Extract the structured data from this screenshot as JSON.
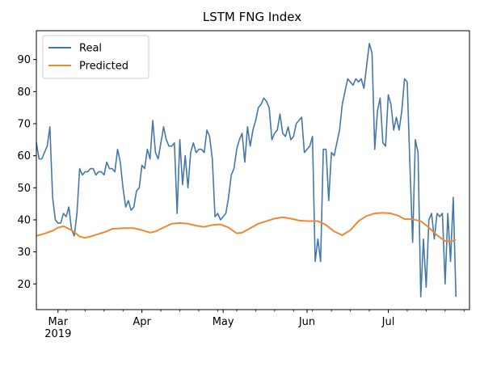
{
  "chart_data": {
    "type": "line",
    "title": "LSTM FNG Index",
    "xlabel": "",
    "ylabel": "",
    "x_range": [
      "2019-02-21",
      "2019-07-31"
    ],
    "ylim": [
      12,
      99
    ],
    "y_ticks": [
      20,
      30,
      40,
      50,
      60,
      70,
      80,
      90
    ],
    "x_ticks": [
      {
        "date": "2019-03-01",
        "label": "Mar",
        "sublabel": "2019"
      },
      {
        "date": "2019-04-01",
        "label": "Apr",
        "sublabel": ""
      },
      {
        "date": "2019-05-01",
        "label": "May",
        "sublabel": ""
      },
      {
        "date": "2019-06-01",
        "label": "Jun",
        "sublabel": ""
      },
      {
        "date": "2019-07-01",
        "label": "Jul",
        "sublabel": ""
      }
    ],
    "grid": false,
    "legend": {
      "position": "top-left"
    },
    "series": [
      {
        "name": "Real",
        "color": "#4477aa",
        "points": [
          [
            "2019-02-21",
            64
          ],
          [
            "2019-02-22",
            59
          ],
          [
            "2019-02-23",
            59
          ],
          [
            "2019-02-24",
            61
          ],
          [
            "2019-02-25",
            63
          ],
          [
            "2019-02-26",
            69
          ],
          [
            "2019-02-27",
            47
          ],
          [
            "2019-02-28",
            40
          ],
          [
            "2019-03-01",
            39
          ],
          [
            "2019-03-02",
            39
          ],
          [
            "2019-03-03",
            42
          ],
          [
            "2019-03-04",
            41
          ],
          [
            "2019-03-05",
            44
          ],
          [
            "2019-03-06",
            37
          ],
          [
            "2019-03-07",
            35
          ],
          [
            "2019-03-08",
            42
          ],
          [
            "2019-03-09",
            56
          ],
          [
            "2019-03-10",
            54
          ],
          [
            "2019-03-11",
            55
          ],
          [
            "2019-03-12",
            55
          ],
          [
            "2019-03-13",
            56
          ],
          [
            "2019-03-14",
            56
          ],
          [
            "2019-03-15",
            54
          ],
          [
            "2019-03-16",
            55
          ],
          [
            "2019-03-17",
            55
          ],
          [
            "2019-03-18",
            54
          ],
          [
            "2019-03-19",
            58
          ],
          [
            "2019-03-20",
            56
          ],
          [
            "2019-03-21",
            56
          ],
          [
            "2019-03-22",
            55
          ],
          [
            "2019-03-23",
            62
          ],
          [
            "2019-03-24",
            58
          ],
          [
            "2019-03-25",
            50
          ],
          [
            "2019-03-26",
            44
          ],
          [
            "2019-03-27",
            46
          ],
          [
            "2019-03-28",
            43
          ],
          [
            "2019-03-29",
            44
          ],
          [
            "2019-03-30",
            49
          ],
          [
            "2019-03-31",
            50
          ],
          [
            "2019-04-01",
            57
          ],
          [
            "2019-04-02",
            56
          ],
          [
            "2019-04-03",
            62
          ],
          [
            "2019-04-04",
            59
          ],
          [
            "2019-04-05",
            71
          ],
          [
            "2019-04-06",
            61
          ],
          [
            "2019-04-07",
            59
          ],
          [
            "2019-04-08",
            64
          ],
          [
            "2019-04-09",
            69
          ],
          [
            "2019-04-10",
            65
          ],
          [
            "2019-04-11",
            63
          ],
          [
            "2019-04-12",
            63
          ],
          [
            "2019-04-13",
            64
          ],
          [
            "2019-04-14",
            42
          ],
          [
            "2019-04-15",
            65
          ],
          [
            "2019-04-16",
            51
          ],
          [
            "2019-04-17",
            60
          ],
          [
            "2019-04-18",
            50
          ],
          [
            "2019-04-19",
            61
          ],
          [
            "2019-04-20",
            64
          ],
          [
            "2019-04-21",
            61
          ],
          [
            "2019-04-22",
            62
          ],
          [
            "2019-04-23",
            62
          ],
          [
            "2019-04-24",
            61
          ],
          [
            "2019-04-25",
            68
          ],
          [
            "2019-04-26",
            66
          ],
          [
            "2019-04-27",
            59
          ],
          [
            "2019-04-28",
            41
          ],
          [
            "2019-04-29",
            42
          ],
          [
            "2019-04-30",
            40
          ],
          [
            "2019-05-01",
            41
          ],
          [
            "2019-05-02",
            42
          ],
          [
            "2019-05-03",
            47
          ],
          [
            "2019-05-04",
            54
          ],
          [
            "2019-05-05",
            56
          ],
          [
            "2019-05-06",
            62
          ],
          [
            "2019-05-07",
            65
          ],
          [
            "2019-05-08",
            67
          ],
          [
            "2019-05-09",
            58
          ],
          [
            "2019-05-10",
            69
          ],
          [
            "2019-05-11",
            63
          ],
          [
            "2019-05-12",
            68
          ],
          [
            "2019-05-13",
            71
          ],
          [
            "2019-05-14",
            75
          ],
          [
            "2019-05-15",
            76
          ],
          [
            "2019-05-16",
            78
          ],
          [
            "2019-05-17",
            77
          ],
          [
            "2019-05-18",
            75
          ],
          [
            "2019-05-19",
            65
          ],
          [
            "2019-05-20",
            67
          ],
          [
            "2019-05-21",
            68
          ],
          [
            "2019-05-22",
            73
          ],
          [
            "2019-05-23",
            67
          ],
          [
            "2019-05-24",
            66
          ],
          [
            "2019-05-25",
            69
          ],
          [
            "2019-05-26",
            65
          ],
          [
            "2019-05-27",
            66
          ],
          [
            "2019-05-28",
            70
          ],
          [
            "2019-05-29",
            71
          ],
          [
            "2019-05-30",
            72
          ],
          [
            "2019-05-31",
            61
          ],
          [
            "2019-06-01",
            62
          ],
          [
            "2019-06-02",
            63
          ],
          [
            "2019-06-03",
            66
          ],
          [
            "2019-06-04",
            27
          ],
          [
            "2019-06-05",
            34
          ],
          [
            "2019-06-06",
            27
          ],
          [
            "2019-06-07",
            62
          ],
          [
            "2019-06-08",
            62
          ],
          [
            "2019-06-09",
            46
          ],
          [
            "2019-06-10",
            61
          ],
          [
            "2019-06-11",
            60
          ],
          [
            "2019-06-12",
            64
          ],
          [
            "2019-06-13",
            68
          ],
          [
            "2019-06-14",
            76
          ],
          [
            "2019-06-15",
            80
          ],
          [
            "2019-06-16",
            84
          ],
          [
            "2019-06-17",
            83
          ],
          [
            "2019-06-18",
            82
          ],
          [
            "2019-06-19",
            84
          ],
          [
            "2019-06-20",
            83
          ],
          [
            "2019-06-21",
            84
          ],
          [
            "2019-06-22",
            81
          ],
          [
            "2019-06-23",
            88
          ],
          [
            "2019-06-24",
            95
          ],
          [
            "2019-06-25",
            92
          ],
          [
            "2019-06-26",
            62
          ],
          [
            "2019-06-27",
            74
          ],
          [
            "2019-06-28",
            78
          ],
          [
            "2019-06-29",
            64
          ],
          [
            "2019-06-30",
            63
          ],
          [
            "2019-07-01",
            79
          ],
          [
            "2019-07-02",
            76
          ],
          [
            "2019-07-03",
            68
          ],
          [
            "2019-07-04",
            72
          ],
          [
            "2019-07-05",
            68
          ],
          [
            "2019-07-06",
            74
          ],
          [
            "2019-07-07",
            84
          ],
          [
            "2019-07-08",
            83
          ],
          [
            "2019-07-09",
            57
          ],
          [
            "2019-07-10",
            33
          ],
          [
            "2019-07-11",
            65
          ],
          [
            "2019-07-12",
            61
          ],
          [
            "2019-07-13",
            16
          ],
          [
            "2019-07-14",
            34
          ],
          [
            "2019-07-15",
            19
          ],
          [
            "2019-07-16",
            40
          ],
          [
            "2019-07-17",
            42
          ],
          [
            "2019-07-18",
            34
          ],
          [
            "2019-07-19",
            42
          ],
          [
            "2019-07-20",
            41
          ],
          [
            "2019-07-21",
            42
          ],
          [
            "2019-07-22",
            20
          ],
          [
            "2019-07-23",
            42
          ],
          [
            "2019-07-24",
            27
          ],
          [
            "2019-07-25",
            47
          ],
          [
            "2019-07-26",
            16
          ]
        ]
      },
      {
        "name": "Predicted",
        "color": "#ee8833",
        "points": [
          [
            "2019-02-21",
            35.0
          ],
          [
            "2019-02-24",
            35.7
          ],
          [
            "2019-02-27",
            36.6
          ],
          [
            "2019-03-01",
            37.6
          ],
          [
            "2019-03-03",
            38.0
          ],
          [
            "2019-03-05",
            37.2
          ],
          [
            "2019-03-07",
            36.2
          ],
          [
            "2019-03-09",
            34.8
          ],
          [
            "2019-03-11",
            34.4
          ],
          [
            "2019-03-13",
            34.8
          ],
          [
            "2019-03-16",
            35.6
          ],
          [
            "2019-03-19",
            36.4
          ],
          [
            "2019-03-21",
            37.2
          ],
          [
            "2019-03-25",
            37.4
          ],
          [
            "2019-03-29",
            37.4
          ],
          [
            "2019-04-01",
            36.8
          ],
          [
            "2019-04-04",
            36.0
          ],
          [
            "2019-04-06",
            36.4
          ],
          [
            "2019-04-09",
            37.6
          ],
          [
            "2019-04-12",
            38.8
          ],
          [
            "2019-04-15",
            39.0
          ],
          [
            "2019-04-18",
            38.8
          ],
          [
            "2019-04-21",
            38.2
          ],
          [
            "2019-04-24",
            37.8
          ],
          [
            "2019-04-27",
            38.4
          ],
          [
            "2019-04-30",
            38.6
          ],
          [
            "2019-05-03",
            37.6
          ],
          [
            "2019-05-06",
            35.8
          ],
          [
            "2019-05-08",
            36.0
          ],
          [
            "2019-05-11",
            37.4
          ],
          [
            "2019-05-14",
            38.8
          ],
          [
            "2019-05-17",
            39.6
          ],
          [
            "2019-05-20",
            40.4
          ],
          [
            "2019-05-23",
            40.8
          ],
          [
            "2019-05-26",
            40.4
          ],
          [
            "2019-05-29",
            39.8
          ],
          [
            "2019-06-01",
            39.6
          ],
          [
            "2019-06-05",
            39.6
          ],
          [
            "2019-06-08",
            38.4
          ],
          [
            "2019-06-11",
            36.4
          ],
          [
            "2019-06-14",
            35.2
          ],
          [
            "2019-06-17",
            36.8
          ],
          [
            "2019-06-20",
            39.6
          ],
          [
            "2019-06-23",
            41.2
          ],
          [
            "2019-06-26",
            42.0
          ],
          [
            "2019-06-29",
            42.2
          ],
          [
            "2019-07-02",
            42.0
          ],
          [
            "2019-07-05",
            41.2
          ],
          [
            "2019-07-07",
            40.2
          ],
          [
            "2019-07-10",
            40.2
          ],
          [
            "2019-07-13",
            39.6
          ],
          [
            "2019-07-16",
            37.6
          ],
          [
            "2019-07-19",
            35.2
          ],
          [
            "2019-07-22",
            33.4
          ],
          [
            "2019-07-24",
            33.2
          ],
          [
            "2019-07-26",
            33.8
          ]
        ]
      }
    ]
  }
}
